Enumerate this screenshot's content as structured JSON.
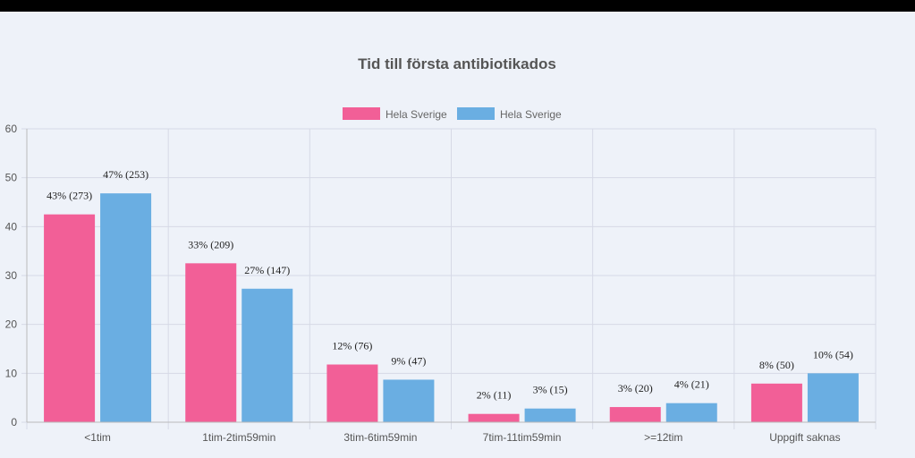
{
  "colors": {
    "series1": "#f25f97",
    "series2": "#6aaee2",
    "background": "#eef2f9"
  },
  "chart_data": {
    "type": "bar",
    "title": "Tid till första antibiotikados",
    "categories": [
      "<1tim",
      "1tim-2tim59min",
      "3tim-6tim59min",
      "7tim-11tim59min",
      ">=12tim",
      "Uppgift saknas"
    ],
    "ylim": [
      0,
      60
    ],
    "yticks": [
      "0",
      "10",
      "20",
      "30",
      "40",
      "50",
      "60"
    ],
    "grid": true,
    "legend_position": "top-center",
    "series": [
      {
        "name": "Hela Sverige",
        "values": [
          42.5,
          32.5,
          11.8,
          1.7,
          3.1,
          7.9
        ],
        "labels": [
          "43% (273)",
          "33% (209)",
          "12% (76)",
          "2% (11)",
          "3% (20)",
          "8% (50)"
        ]
      },
      {
        "name": "Hela Sverige",
        "values": [
          46.8,
          27.3,
          8.7,
          2.8,
          3.9,
          10.0
        ],
        "labels": [
          "47% (253)",
          "27% (147)",
          "9% (47)",
          "3% (15)",
          "4% (21)",
          "10% (54)"
        ]
      }
    ]
  }
}
